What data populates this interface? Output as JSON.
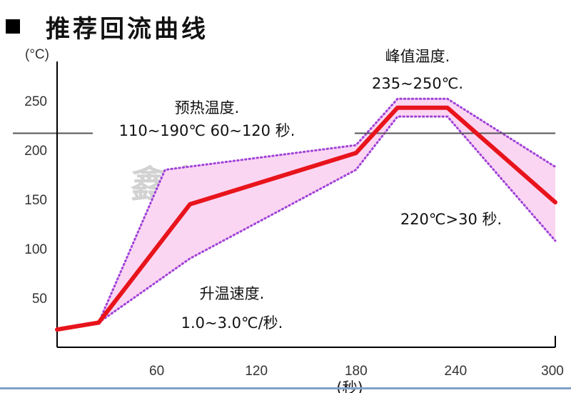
{
  "title": "推荐回流曲线",
  "icons": {
    "bullet": "black-square-bullet-icon"
  },
  "colors": {
    "profile": "#e8141c",
    "band_fill": "#fbd6f3",
    "band_edge": "#a142d8",
    "ref_line": "#555555",
    "bottom_rule": "#7fa0c8"
  },
  "chart_data": {
    "type": "line",
    "title": "推荐回流曲线",
    "xlabel": "(秒)",
    "ylabel": "(°C)",
    "xlim": [
      0,
      300
    ],
    "ylim": [
      0,
      270
    ],
    "x_ticks": [
      "60",
      "120",
      "180",
      "240",
      "300"
    ],
    "x_tick_values": [
      60,
      120,
      180,
      240,
      300
    ],
    "y_ticks": [
      "50",
      "100",
      "150",
      "200",
      "250"
    ],
    "y_tick_values": [
      50,
      100,
      150,
      200,
      250
    ],
    "grid": false,
    "series": [
      {
        "name": "",
        "role": "profile",
        "x": [
          0,
          25,
          80,
          180,
          205,
          235,
          300
        ],
        "y": [
          18,
          25,
          145,
          197,
          243,
          243,
          147
        ]
      },
      {
        "name": "",
        "role": "upper_limit",
        "x": [
          25,
          65,
          180,
          205,
          235,
          300
        ],
        "y": [
          25,
          180,
          205,
          252,
          252,
          183
        ]
      },
      {
        "name": "",
        "role": "lower_limit",
        "x": [
          25,
          80,
          180,
          205,
          235,
          300
        ],
        "y": [
          25,
          90,
          180,
          234,
          234,
          108
        ]
      }
    ],
    "reference_line": {
      "y": 217
    },
    "annotations": {
      "preheat_label": "预热温度.",
      "preheat_value": "110~190℃ 60~120 秒.",
      "peak_label": "峰值温度.",
      "peak_value": "235~250℃.",
      "tal": "220℃>30 秒.",
      "ramp_label": "升温速度.",
      "ramp_value": "1.0~3.0℃/秒."
    },
    "watermark": "鑫富锦"
  }
}
